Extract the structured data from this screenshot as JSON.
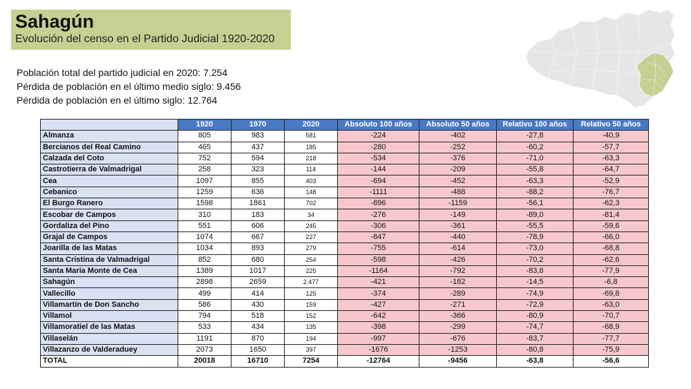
{
  "title": "Sahagún",
  "subtitle": "Evolución del censo en el Partido Judicial 1920-2020",
  "stats": [
    "Población total del partido judicial en 2020: 7.254",
    "Pérdida de población en el último medio siglo: 9.456",
    "Pérdida de población en el último siglo: 12.764"
  ],
  "map": {
    "base_color": "#e8e8e8",
    "highlight_color": "#c7cf92",
    "icon": "province-map-icon"
  },
  "table": {
    "headers": [
      "",
      "1920",
      "1970",
      "2020",
      "Absoluto 100 años",
      "Absoluto 50 años",
      "Relativo 100 años",
      "Relativo 50 años"
    ],
    "rows": [
      [
        "Almanza",
        "805",
        "983",
        "581",
        "-224",
        "-402",
        "-27,8",
        "-40,9"
      ],
      [
        "Bercianos del Real Camino",
        "465",
        "437",
        "185",
        "-280",
        "-252",
        "-60,2",
        "-57,7"
      ],
      [
        "Calzada del Coto",
        "752",
        "594",
        "218",
        "-534",
        "-376",
        "-71,0",
        "-63,3"
      ],
      [
        "Castrotierra de Valmadrigal",
        "258",
        "323",
        "114",
        "-144",
        "-209",
        "-55,8",
        "-64,7"
      ],
      [
        "Cea",
        "1097",
        "855",
        "403",
        "-694",
        "-452",
        "-63,3",
        "-52,9"
      ],
      [
        "Cebanico",
        "1259",
        "636",
        "148",
        "-1111",
        "-488",
        "-88,2",
        "-76,7"
      ],
      [
        "El Burgo Ranero",
        "1598",
        "1861",
        "702",
        "-896",
        "-1159",
        "-56,1",
        "-62,3"
      ],
      [
        "Escobar de Campos",
        "310",
        "183",
        "34",
        "-276",
        "-149",
        "-89,0",
        "-81,4"
      ],
      [
        "Gordaliza del Pino",
        "551",
        "606",
        "245",
        "-306",
        "-361",
        "-55,5",
        "-59,6"
      ],
      [
        "Grajal de Campos",
        "1074",
        "667",
        "227",
        "-847",
        "-440",
        "-78,9",
        "-66,0"
      ],
      [
        "Joarilla de las Matas",
        "1034",
        "893",
        "279",
        "-755",
        "-614",
        "-73,0",
        "-68,8"
      ],
      [
        "Santa Cristina de Valmadrigal",
        "852",
        "680",
        "254",
        "-598",
        "-426",
        "-70,2",
        "-62,6"
      ],
      [
        "Santa María Monte de Cea",
        "1389",
        "1017",
        "225",
        "-1164",
        "-792",
        "-83,8",
        "-77,9"
      ],
      [
        "Sahagún",
        "2898",
        "2659",
        "2.477",
        "-421",
        "-182",
        "-14,5",
        "-6,8"
      ],
      [
        "Vallecillo",
        "499",
        "414",
        "125",
        "-374",
        "-289",
        "-74,9",
        "-69,8"
      ],
      [
        "Villamartín de Don Sancho",
        "586",
        "430",
        "159",
        "-427",
        "-271",
        "-72,9",
        "-63,0"
      ],
      [
        "Villamol",
        "794",
        "518",
        "152",
        "-642",
        "-366",
        "-80,9",
        "-70,7"
      ],
      [
        "Villamoratiel de las Matas",
        "533",
        "434",
        "135",
        "-398",
        "-299",
        "-74,7",
        "-68,9"
      ],
      [
        "Villaselán",
        "1191",
        "870",
        "194",
        "-997",
        "-676",
        "-83,7",
        "-77,7"
      ],
      [
        "Villazanzo de Valderaduey",
        "2073",
        "1650",
        "397",
        "-1676",
        "-1253",
        "-80,8",
        "-75,9"
      ]
    ],
    "total": [
      "TOTAL",
      "20018",
      "16710",
      "7254",
      "-12764",
      "-9456",
      "-63,8",
      "-56,6"
    ]
  }
}
